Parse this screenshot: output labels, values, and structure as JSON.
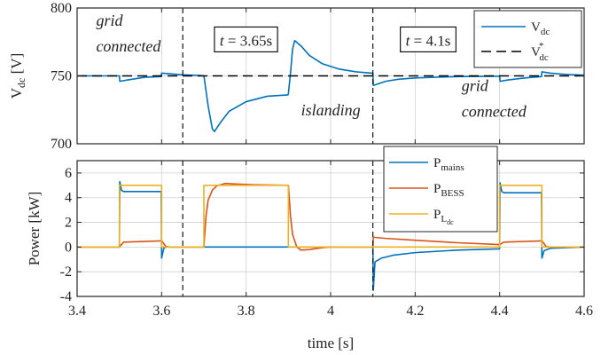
{
  "chart_data": [
    {
      "type": "line",
      "xlim": [
        3.4,
        4.6
      ],
      "ylim": [
        700,
        800
      ],
      "yticks": [
        700,
        750,
        800
      ],
      "ylabel": "V_dc [V]",
      "ylabel_parts": {
        "main": "V",
        "sub": "dc",
        "unit": " [V]"
      },
      "grid": true,
      "legend_position": "top-right",
      "series": [
        {
          "key": "vdc",
          "name": "V_dc",
          "label_main": "V",
          "label_sub": "dc",
          "color": "#0072BD",
          "style": "solid",
          "points": [
            [
              3.4,
              750
            ],
            [
              3.5,
              750
            ],
            [
              3.501,
              746
            ],
            [
              3.52,
              747
            ],
            [
              3.54,
              748
            ],
            [
              3.56,
              749
            ],
            [
              3.599,
              749.5
            ],
            [
              3.6,
              752
            ],
            [
              3.62,
              751.5
            ],
            [
              3.65,
              750.8
            ],
            [
              3.69,
              750.3
            ],
            [
              3.7,
              750
            ],
            [
              3.701,
              748
            ],
            [
              3.71,
              728
            ],
            [
              3.72,
              711
            ],
            [
              3.725,
              709
            ],
            [
              3.74,
              716
            ],
            [
              3.76,
              724
            ],
            [
              3.8,
              731
            ],
            [
              3.85,
              735
            ],
            [
              3.899,
              736
            ],
            [
              3.9,
              737
            ],
            [
              3.905,
              752
            ],
            [
              3.91,
              770
            ],
            [
              3.915,
              776
            ],
            [
              3.93,
              772
            ],
            [
              3.95,
              765
            ],
            [
              3.98,
              759
            ],
            [
              4.02,
              755
            ],
            [
              4.06,
              753
            ],
            [
              4.099,
              752
            ],
            [
              4.1,
              752
            ],
            [
              4.101,
              743
            ],
            [
              4.13,
              746
            ],
            [
              4.16,
              747.5
            ],
            [
              4.2,
              748.5
            ],
            [
              4.3,
              749.5
            ],
            [
              4.399,
              749.8
            ],
            [
              4.4,
              750
            ],
            [
              4.401,
              746
            ],
            [
              4.42,
              747
            ],
            [
              4.46,
              748.5
            ],
            [
              4.499,
              749.5
            ],
            [
              4.5,
              753
            ],
            [
              4.52,
              752
            ],
            [
              4.56,
              751
            ],
            [
              4.6,
              750.5
            ]
          ]
        },
        {
          "key": "vref",
          "name": "V_dc^*",
          "label_main": "V",
          "label_sub": "dc",
          "label_sup": "*",
          "color": "#000000",
          "style": "dashed",
          "points": [
            [
              3.4,
              750
            ],
            [
              4.6,
              750
            ]
          ]
        }
      ],
      "vlines": [
        3.65,
        4.1
      ],
      "annotations": [
        {
          "text": "grid",
          "x": 3.445,
          "y": 787
        },
        {
          "text": "connected",
          "x": 3.445,
          "y": 768
        },
        {
          "text": "islanding",
          "x": 3.93,
          "y": 721
        },
        {
          "text": "grid",
          "x": 4.31,
          "y": 739
        },
        {
          "text": "connected",
          "x": 4.31,
          "y": 720
        }
      ],
      "boxed_labels": [
        {
          "text_main": "t",
          "text_rest": " = 3.65s",
          "x": 3.725,
          "y": 786
        },
        {
          "text_main": "t",
          "text_rest": " = 4.1s",
          "x": 4.165,
          "y": 786
        }
      ]
    },
    {
      "type": "line",
      "xlim": [
        3.4,
        4.6
      ],
      "ylim": [
        -4,
        7
      ],
      "yticks": [
        -4,
        -2,
        0,
        2,
        4,
        6
      ],
      "xticks": [
        3.4,
        3.6,
        3.8,
        4,
        4.2,
        4.4,
        4.6
      ],
      "xtick_labels": [
        "3.4",
        "3.6",
        "3.8",
        "4",
        "4.2",
        "4.4",
        "4.6"
      ],
      "xlabel": "time [s]",
      "ylabel": "Power [kW]",
      "grid": true,
      "legend_position": "top-center",
      "series": [
        {
          "key": "pmains",
          "name": "P_mains",
          "label_main": "P",
          "label_sub": "mains",
          "color": "#0072BD",
          "style": "solid",
          "points": [
            [
              3.4,
              0
            ],
            [
              3.5,
              0
            ],
            [
              3.501,
              5.3
            ],
            [
              3.505,
              4.6
            ],
            [
              3.51,
              4.5
            ],
            [
              3.599,
              4.5
            ],
            [
              3.6,
              -0.9
            ],
            [
              3.605,
              -0.1
            ],
            [
              3.61,
              0
            ],
            [
              3.7,
              0
            ],
            [
              4.1,
              0
            ],
            [
              4.101,
              -3.5
            ],
            [
              4.105,
              -1.2
            ],
            [
              4.12,
              -0.9
            ],
            [
              4.15,
              -0.65
            ],
            [
              4.2,
              -0.45
            ],
            [
              4.3,
              -0.25
            ],
            [
              4.399,
              -0.15
            ],
            [
              4.4,
              -0.1
            ],
            [
              4.401,
              5.2
            ],
            [
              4.405,
              4.5
            ],
            [
              4.41,
              4.4
            ],
            [
              4.499,
              4.4
            ],
            [
              4.5,
              -0.9
            ],
            [
              4.505,
              -0.3
            ],
            [
              4.52,
              -0.1
            ],
            [
              4.6,
              0
            ]
          ]
        },
        {
          "key": "pbess",
          "name": "P_BESS",
          "label_main": "P",
          "label_sub": "BESS",
          "color": "#D95319",
          "style": "solid",
          "points": [
            [
              3.4,
              0
            ],
            [
              3.5,
              0
            ],
            [
              3.51,
              0.4
            ],
            [
              3.599,
              0.5
            ],
            [
              3.6,
              0.5
            ],
            [
              3.61,
              0.05
            ],
            [
              3.62,
              0
            ],
            [
              3.7,
              0
            ],
            [
              3.705,
              2.5
            ],
            [
              3.71,
              3.8
            ],
            [
              3.72,
              4.6
            ],
            [
              3.73,
              4.95
            ],
            [
              3.75,
              5.15
            ],
            [
              3.78,
              5.1
            ],
            [
              3.82,
              5.05
            ],
            [
              3.9,
              5.0
            ],
            [
              3.905,
              2.5
            ],
            [
              3.91,
              1.0
            ],
            [
              3.92,
              0
            ],
            [
              3.93,
              -0.25
            ],
            [
              3.95,
              -0.2
            ],
            [
              3.98,
              -0.05
            ],
            [
              4.0,
              0
            ],
            [
              4.1,
              0
            ],
            [
              4.101,
              0.8
            ],
            [
              4.13,
              0.7
            ],
            [
              4.2,
              0.55
            ],
            [
              4.3,
              0.35
            ],
            [
              4.399,
              0.2
            ],
            [
              4.4,
              0.2
            ],
            [
              4.41,
              0.4
            ],
            [
              4.499,
              0.5
            ],
            [
              4.5,
              0.5
            ],
            [
              4.51,
              0.05
            ],
            [
              4.52,
              0
            ],
            [
              4.6,
              0
            ]
          ]
        },
        {
          "key": "pload",
          "name": "P_Ldc",
          "label_main": "P",
          "label_sub": "L",
          "label_subsub": "dc",
          "color": "#EDB120",
          "style": "solid",
          "points": [
            [
              3.4,
              0
            ],
            [
              3.5,
              0
            ],
            [
              3.5,
              5
            ],
            [
              3.6,
              5
            ],
            [
              3.6,
              0
            ],
            [
              3.7,
              0
            ],
            [
              3.7,
              5
            ],
            [
              3.9,
              5
            ],
            [
              3.9,
              0
            ],
            [
              4.4,
              0
            ],
            [
              4.4,
              5
            ],
            [
              4.5,
              5
            ],
            [
              4.5,
              0
            ],
            [
              4.6,
              0
            ]
          ]
        }
      ],
      "vlines": [
        3.65,
        4.1
      ]
    }
  ]
}
